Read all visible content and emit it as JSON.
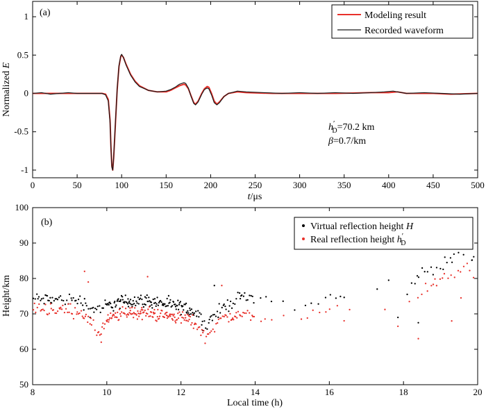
{
  "chart_data": [
    {
      "type": "line",
      "panel_label": "(a)",
      "title": "",
      "xlabel_italic": "t",
      "xlabel_rest": "/μs",
      "ylabel_main": "Normalized ",
      "ylabel_italic": "E",
      "xlim": [
        0,
        500
      ],
      "ylim": [
        -1.1,
        1.2
      ],
      "xticks": [
        0,
        50,
        100,
        150,
        200,
        250,
        300,
        350,
        400,
        450,
        500
      ],
      "yticks": [
        -1,
        -0.5,
        0,
        0.5,
        1
      ],
      "ytick_labels": [
        "-1",
        "-0.5",
        "0",
        "0.5",
        "1"
      ],
      "legend_placement": "top-right",
      "series": [
        {
          "name": "Modeling result",
          "color": "#e8302a",
          "points": [
            [
              0,
              0
            ],
            [
              40,
              0
            ],
            [
              60,
              0
            ],
            [
              78,
              0
            ],
            [
              82,
              -0.01
            ],
            [
              85,
              -0.08
            ],
            [
              87,
              -0.35
            ],
            [
              88,
              -0.7
            ],
            [
              89,
              -0.95
            ],
            [
              90,
              -1.0
            ],
            [
              91,
              -0.85
            ],
            [
              93,
              -0.4
            ],
            [
              95,
              0.05
            ],
            [
              97,
              0.35
            ],
            [
              99,
              0.48
            ],
            [
              100,
              0.5
            ],
            [
              102,
              0.47
            ],
            [
              105,
              0.38
            ],
            [
              110,
              0.25
            ],
            [
              115,
              0.16
            ],
            [
              120,
              0.1
            ],
            [
              130,
              0.04
            ],
            [
              140,
              0.02
            ],
            [
              150,
              0.02
            ],
            [
              155,
              0.04
            ],
            [
              160,
              0.07
            ],
            [
              165,
              0.1
            ],
            [
              170,
              0.12
            ],
            [
              172,
              0.11
            ],
            [
              175,
              0.06
            ],
            [
              178,
              -0.03
            ],
            [
              181,
              -0.12
            ],
            [
              183,
              -0.14
            ],
            [
              186,
              -0.1
            ],
            [
              190,
              0.0
            ],
            [
              193,
              0.06
            ],
            [
              196,
              0.09
            ],
            [
              198,
              0.08
            ],
            [
              201,
              0.0
            ],
            [
              204,
              -0.1
            ],
            [
              207,
              -0.14
            ],
            [
              210,
              -0.11
            ],
            [
              215,
              -0.04
            ],
            [
              220,
              0.0
            ],
            [
              230,
              0.02
            ],
            [
              240,
              0.01
            ],
            [
              270,
              0.0
            ],
            [
              300,
              0.0
            ],
            [
              340,
              0.0
            ],
            [
              380,
              0.01
            ],
            [
              400,
              0.01
            ],
            [
              410,
              0.02
            ],
            [
              420,
              0.0
            ],
            [
              450,
              0.0
            ],
            [
              470,
              -0.01
            ],
            [
              500,
              0.0
            ]
          ]
        },
        {
          "name": "Recorded waveform",
          "color": "#1a1a1a",
          "points": [
            [
              0,
              0
            ],
            [
              10,
              0.01
            ],
            [
              20,
              -0.01
            ],
            [
              30,
              0.0
            ],
            [
              40,
              0.01
            ],
            [
              50,
              0.0
            ],
            [
              60,
              0.0
            ],
            [
              70,
              0.0
            ],
            [
              78,
              0.0
            ],
            [
              82,
              -0.02
            ],
            [
              85,
              -0.1
            ],
            [
              87,
              -0.38
            ],
            [
              88,
              -0.72
            ],
            [
              89,
              -0.96
            ],
            [
              90,
              -1.0
            ],
            [
              91,
              -0.84
            ],
            [
              93,
              -0.38
            ],
            [
              95,
              0.06
            ],
            [
              97,
              0.36
            ],
            [
              99,
              0.49
            ],
            [
              100,
              0.51
            ],
            [
              102,
              0.47
            ],
            [
              105,
              0.37
            ],
            [
              110,
              0.24
            ],
            [
              115,
              0.15
            ],
            [
              120,
              0.09
            ],
            [
              130,
              0.04
            ],
            [
              140,
              0.02
            ],
            [
              150,
              0.03
            ],
            [
              155,
              0.05
            ],
            [
              160,
              0.08
            ],
            [
              165,
              0.12
            ],
            [
              170,
              0.14
            ],
            [
              172,
              0.13
            ],
            [
              175,
              0.07
            ],
            [
              178,
              -0.04
            ],
            [
              181,
              -0.13
            ],
            [
              183,
              -0.15
            ],
            [
              186,
              -0.11
            ],
            [
              190,
              -0.01
            ],
            [
              193,
              0.05
            ],
            [
              196,
              0.07
            ],
            [
              198,
              0.06
            ],
            [
              201,
              -0.02
            ],
            [
              204,
              -0.12
            ],
            [
              207,
              -0.15
            ],
            [
              210,
              -0.12
            ],
            [
              215,
              -0.04
            ],
            [
              220,
              0.0
            ],
            [
              230,
              0.03
            ],
            [
              240,
              0.02
            ],
            [
              260,
              0.01
            ],
            [
              280,
              0.0
            ],
            [
              300,
              0.01
            ],
            [
              320,
              0.0
            ],
            [
              340,
              0.01
            ],
            [
              360,
              0.0
            ],
            [
              380,
              0.01
            ],
            [
              395,
              0.02
            ],
            [
              405,
              0.03
            ],
            [
              410,
              0.02
            ],
            [
              420,
              0.0
            ],
            [
              440,
              0.01
            ],
            [
              460,
              0.0
            ],
            [
              480,
              -0.01
            ],
            [
              500,
              0.0
            ]
          ]
        }
      ],
      "annotations": {
        "h_prefix": "h",
        "h_sup": "′",
        "h_sub": "D",
        "h_value": "=70.2 km",
        "beta_symbol": "β",
        "beta_value": "=0.7/km"
      }
    },
    {
      "type": "scatter",
      "panel_label": "(b)",
      "title": "",
      "xlabel": "Local time (h)",
      "ylabel": "Height/km",
      "xlim": [
        8,
        20
      ],
      "ylim": [
        50,
        100
      ],
      "xticks": [
        8,
        10,
        12,
        14,
        16,
        18,
        20
      ],
      "yticks": [
        50,
        60,
        70,
        80,
        90,
        100
      ],
      "legend_placement": "top-right",
      "series": [
        {
          "name_prefix": "Virtual reflection height ",
          "name_italic": "H",
          "color": "#000000",
          "trend": [
            [
              8.0,
              74.2
            ],
            [
              8.5,
              74.0
            ],
            [
              9.0,
              74.0
            ],
            [
              9.3,
              73.8
            ],
            [
              9.6,
              71.5
            ],
            [
              9.8,
              71.5
            ],
            [
              10.0,
              72.2
            ],
            [
              10.5,
              73.6
            ],
            [
              11.0,
              73.8
            ],
            [
              11.5,
              73.0
            ],
            [
              12.0,
              71.8
            ],
            [
              12.3,
              71.0
            ],
            [
              12.5,
              69.5
            ],
            [
              12.65,
              66.7
            ],
            [
              12.8,
              68.5
            ],
            [
              13.0,
              70.5
            ],
            [
              13.3,
              73.0
            ],
            [
              13.6,
              74.5
            ],
            [
              13.9,
              75.0
            ],
            [
              14.0,
              75.3
            ],
            [
              14.5,
              73.5
            ],
            [
              15.0,
              72.0
            ],
            [
              15.5,
              73.0
            ],
            [
              16.0,
              74.5
            ],
            [
              16.3,
              74.5
            ],
            [
              16.5,
              74.0
            ],
            [
              17.2,
              76.5
            ],
            [
              17.7,
              77.5
            ],
            [
              18.0,
              73.0
            ],
            [
              18.3,
              80.0
            ],
            [
              18.6,
              82.0
            ],
            [
              19.0,
              84.0
            ],
            [
              19.3,
              85.5
            ],
            [
              19.5,
              87.5
            ],
            [
              19.7,
              88.5
            ],
            [
              19.9,
              85.0
            ]
          ],
          "outliers": [
            [
              9.55,
              69.0
            ],
            [
              12.9,
              78.0
            ],
            [
              17.6,
              79.5
            ],
            [
              17.85,
              69.0
            ],
            [
              18.1,
              75.5
            ],
            [
              18.4,
              67.5
            ],
            [
              19.85,
              85.2
            ]
          ]
        },
        {
          "name_prefix": "Real reflection height ",
          "name_italic": "h",
          "name_sup": "′",
          "name_sub": "D",
          "color": "#e8302a",
          "trend": [
            [
              8.0,
              71.8
            ],
            [
              8.5,
              71.3
            ],
            [
              9.0,
              71.0
            ],
            [
              9.3,
              70.8
            ],
            [
              9.6,
              66.5
            ],
            [
              9.8,
              64.5
            ],
            [
              10.0,
              68.0
            ],
            [
              10.5,
              70.5
            ],
            [
              11.0,
              70.3
            ],
            [
              11.5,
              69.6
            ],
            [
              12.0,
              69.0
            ],
            [
              12.3,
              68.0
            ],
            [
              12.5,
              66.0
            ],
            [
              12.65,
              63.0
            ],
            [
              12.8,
              65.5
            ],
            [
              13.0,
              68.0
            ],
            [
              13.3,
              69.2
            ],
            [
              13.6,
              69.6
            ],
            [
              13.9,
              69.8
            ],
            [
              14.0,
              69.8
            ],
            [
              14.5,
              69.0
            ],
            [
              15.0,
              68.8
            ],
            [
              15.5,
              69.0
            ],
            [
              16.0,
              70.8
            ],
            [
              16.3,
              70.5
            ],
            [
              16.5,
              70.0
            ],
            [
              17.2,
              72.0
            ],
            [
              17.7,
              73.5
            ],
            [
              18.0,
              69.0
            ],
            [
              18.3,
              75.0
            ],
            [
              18.6,
              77.5
            ],
            [
              19.0,
              79.5
            ],
            [
              19.3,
              80.5
            ],
            [
              19.5,
              82.5
            ],
            [
              19.7,
              83.2
            ],
            [
              19.9,
              81.0
            ]
          ],
          "outliers": [
            [
              9.4,
              82.0
            ],
            [
              9.5,
              79.0
            ],
            [
              9.85,
              62.0
            ],
            [
              11.1,
              80.5
            ],
            [
              13.1,
              78.0
            ],
            [
              17.85,
              66.5
            ],
            [
              18.4,
              63.0
            ],
            [
              19.3,
              68.0
            ],
            [
              19.55,
              74.5
            ]
          ]
        }
      ]
    }
  ]
}
